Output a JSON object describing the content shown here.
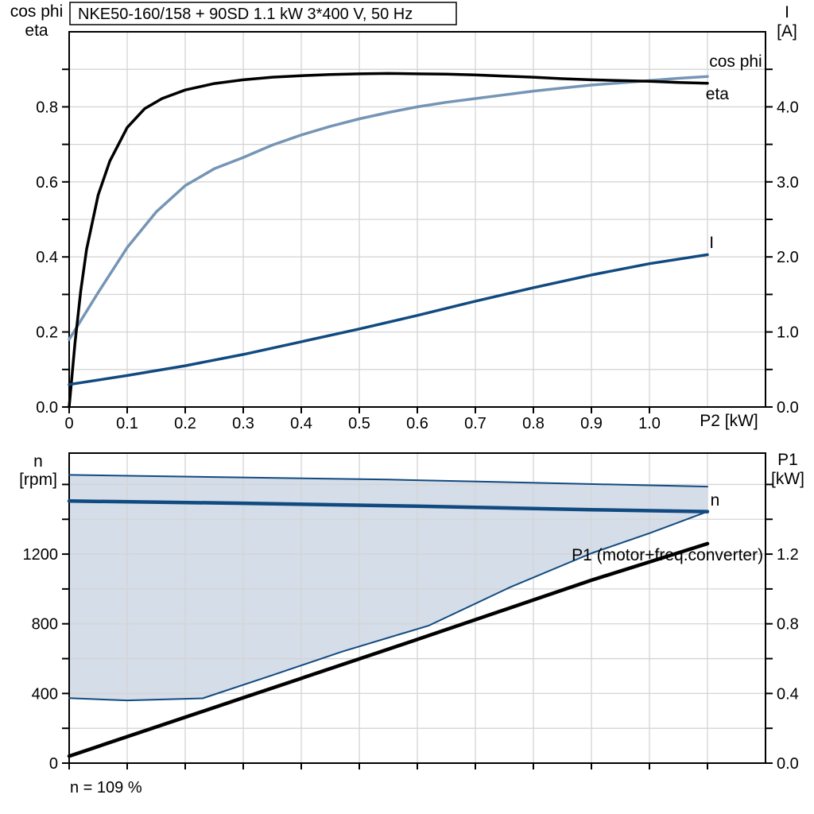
{
  "colors": {
    "black": "#000000",
    "steel_blue": "#7595b5",
    "dark_blue": "#114a80",
    "envelope_fill": "#d4dde8",
    "grid": "#d4d4d4"
  },
  "chart_data": [
    {
      "type": "line",
      "title": "NKE50-160/158 + 90SD   1.1 kW   3*400 V, 50 Hz",
      "left_axis_label": [
        "cos phi",
        "eta"
      ],
      "right_axis_label": [
        "I",
        "[A]"
      ],
      "x_axis_label": "P2 [kW]",
      "x": {
        "min": 0,
        "max": 1.2
      },
      "left": {
        "min": 0,
        "max": 1.0
      },
      "right": {
        "min": 0,
        "max": 5.0
      },
      "grid_on": true,
      "grid_x": [
        0.1,
        0.2,
        0.3,
        0.4,
        0.5,
        0.6,
        0.7,
        0.8,
        0.9,
        1.0,
        1.1
      ],
      "grid_left": [
        0.1,
        0.2,
        0.3,
        0.4,
        0.5,
        0.6,
        0.7,
        0.8,
        0.9
      ],
      "x_ticks": [
        {
          "v": 0,
          "l": "0"
        },
        {
          "v": 0.1,
          "l": "0.1"
        },
        {
          "v": 0.2,
          "l": "0.2"
        },
        {
          "v": 0.3,
          "l": "0.3"
        },
        {
          "v": 0.4,
          "l": "0.4"
        },
        {
          "v": 0.5,
          "l": "0.5"
        },
        {
          "v": 0.6,
          "l": "0.6"
        },
        {
          "v": 0.7,
          "l": "0.7"
        },
        {
          "v": 0.8,
          "l": "0.8"
        },
        {
          "v": 0.9,
          "l": "0.9"
        },
        {
          "v": 1.0,
          "l": "1.0"
        }
      ],
      "left_ticks": [
        {
          "v": 0,
          "l": "0.0"
        },
        {
          "v": 0.1
        },
        {
          "v": 0.2,
          "l": "0.2"
        },
        {
          "v": 0.3
        },
        {
          "v": 0.4,
          "l": "0.4"
        },
        {
          "v": 0.5
        },
        {
          "v": 0.6,
          "l": "0.6"
        },
        {
          "v": 0.7
        },
        {
          "v": 0.8,
          "l": "0.8"
        },
        {
          "v": 0.9
        }
      ],
      "right_ticks": [
        {
          "v": 0,
          "l": "0.0"
        },
        {
          "v": 0.5
        },
        {
          "v": 1.0,
          "l": "1.0"
        },
        {
          "v": 1.5
        },
        {
          "v": 2.0,
          "l": "2.0"
        },
        {
          "v": 2.5
        },
        {
          "v": 3.0,
          "l": "3.0"
        },
        {
          "v": 3.5
        },
        {
          "v": 4.0,
          "l": "4.0"
        },
        {
          "v": 4.5
        }
      ],
      "series": [
        {
          "name": "cos phi",
          "type": "line",
          "axis": "left",
          "color": "#7595b5",
          "width": 3.5,
          "points": [
            [
              0,
              0.18
            ],
            [
              0.02,
              0.23
            ],
            [
              0.05,
              0.305
            ],
            [
              0.1,
              0.425
            ],
            [
              0.15,
              0.52
            ],
            [
              0.2,
              0.59
            ],
            [
              0.25,
              0.635
            ],
            [
              0.3,
              0.665
            ],
            [
              0.35,
              0.698
            ],
            [
              0.4,
              0.725
            ],
            [
              0.45,
              0.748
            ],
            [
              0.5,
              0.768
            ],
            [
              0.55,
              0.785
            ],
            [
              0.6,
              0.8
            ],
            [
              0.65,
              0.812
            ],
            [
              0.7,
              0.822
            ],
            [
              0.75,
              0.832
            ],
            [
              0.8,
              0.842
            ],
            [
              0.85,
              0.85
            ],
            [
              0.9,
              0.858
            ],
            [
              0.95,
              0.864
            ],
            [
              1.0,
              0.87
            ],
            [
              1.05,
              0.876
            ],
            [
              1.1,
              0.881
            ]
          ]
        },
        {
          "name": "eta",
          "type": "line",
          "axis": "left",
          "color": "#000000",
          "width": 3.5,
          "points": [
            [
              0,
              0.0
            ],
            [
              0.01,
              0.17
            ],
            [
              0.02,
              0.31
            ],
            [
              0.03,
              0.42
            ],
            [
              0.05,
              0.565
            ],
            [
              0.07,
              0.655
            ],
            [
              0.1,
              0.745
            ],
            [
              0.13,
              0.795
            ],
            [
              0.16,
              0.822
            ],
            [
              0.2,
              0.845
            ],
            [
              0.25,
              0.862
            ],
            [
              0.3,
              0.872
            ],
            [
              0.35,
              0.879
            ],
            [
              0.4,
              0.883
            ],
            [
              0.45,
              0.886
            ],
            [
              0.5,
              0.888
            ],
            [
              0.55,
              0.889
            ],
            [
              0.6,
              0.888
            ],
            [
              0.65,
              0.887
            ],
            [
              0.7,
              0.885
            ],
            [
              0.75,
              0.882
            ],
            [
              0.8,
              0.879
            ],
            [
              0.85,
              0.875
            ],
            [
              0.9,
              0.872
            ],
            [
              0.95,
              0.87
            ],
            [
              1.0,
              0.868
            ],
            [
              1.05,
              0.865
            ],
            [
              1.1,
              0.863
            ]
          ]
        },
        {
          "name": "I",
          "type": "line",
          "axis": "right",
          "color": "#114a80",
          "width": 3.5,
          "points": [
            [
              0,
              0.3
            ],
            [
              0.1,
              0.42
            ],
            [
              0.2,
              0.55
            ],
            [
              0.3,
              0.7
            ],
            [
              0.4,
              0.87
            ],
            [
              0.5,
              1.04
            ],
            [
              0.6,
              1.22
            ],
            [
              0.7,
              1.41
            ],
            [
              0.8,
              1.59
            ],
            [
              0.9,
              1.76
            ],
            [
              1.0,
              1.91
            ],
            [
              1.1,
              2.03
            ]
          ]
        }
      ],
      "labels": [
        {
          "text": "cos phi",
          "x": 1.103,
          "v": 0.907,
          "axis": "left",
          "color": "#7595b5",
          "anchor": "start"
        },
        {
          "text": "eta",
          "x": 1.097,
          "v": 0.82,
          "axis": "left",
          "color": "#000000",
          "anchor": "start"
        },
        {
          "text": "I",
          "x": 1.103,
          "v": 2.12,
          "axis": "right",
          "color": "#114a80",
          "anchor": "start"
        }
      ]
    },
    {
      "type": "line",
      "footer_note": "n = 109 %",
      "left_axis_label": [
        "n",
        "[rpm]"
      ],
      "right_axis_label": [
        "P1",
        "[kW]"
      ],
      "x_axis_label": "",
      "x": {
        "min": 0,
        "max": 1.2
      },
      "left": {
        "min": 0,
        "max": 1780
      },
      "right": {
        "min": 0,
        "max": 1.78
      },
      "grid_on": true,
      "grid_x": [
        0.1,
        0.2,
        0.3,
        0.4,
        0.5,
        0.6,
        0.7,
        0.8,
        0.9,
        1.0,
        1.1
      ],
      "grid_left": [
        200,
        400,
        600,
        800,
        1000,
        1200,
        1400,
        1600
      ],
      "x_ticks": [
        {
          "v": 0
        },
        {
          "v": 0.1
        },
        {
          "v": 0.2
        },
        {
          "v": 0.3
        },
        {
          "v": 0.4
        },
        {
          "v": 0.5
        },
        {
          "v": 0.6
        },
        {
          "v": 0.7
        },
        {
          "v": 0.8
        },
        {
          "v": 0.9
        },
        {
          "v": 1.0
        },
        {
          "v": 1.1
        }
      ],
      "left_ticks": [
        {
          "v": 0,
          "l": "0"
        },
        {
          "v": 200
        },
        {
          "v": 400,
          "l": "400"
        },
        {
          "v": 600
        },
        {
          "v": 800,
          "l": "800"
        },
        {
          "v": 1000
        },
        {
          "v": 1200,
          "l": "1200"
        },
        {
          "v": 1400
        },
        {
          "v": 1600
        }
      ],
      "right_ticks": [
        {
          "v": 0,
          "l": "0.0"
        },
        {
          "v": 0.2
        },
        {
          "v": 0.4,
          "l": "0.4"
        },
        {
          "v": 0.6
        },
        {
          "v": 0.8,
          "l": "0.8"
        },
        {
          "v": 1.0
        },
        {
          "v": 1.2,
          "l": "1.2"
        },
        {
          "v": 1.4
        },
        {
          "v": 1.6
        }
      ],
      "series": [
        {
          "name": "speed envelope",
          "type": "area",
          "axis": "left",
          "color": "#d4dde8",
          "width": 0,
          "points": [
            [
              0,
              1655
            ],
            [
              0.55,
              1628
            ],
            [
              1.1,
              1588
            ],
            [
              1.1,
              1444
            ],
            [
              1.0,
              1320
            ],
            [
              0.9,
              1205
            ],
            [
              0.76,
              1010
            ],
            [
              0.62,
              790
            ],
            [
              0.47,
              640
            ],
            [
              0.35,
              505
            ],
            [
              0.23,
              372
            ],
            [
              0.1,
              360
            ],
            [
              0,
              373
            ]
          ]
        },
        {
          "name": "envelope max speed",
          "type": "line",
          "axis": "left",
          "color": "#114a80",
          "width": 2,
          "points": [
            [
              0,
              1655
            ],
            [
              0.55,
              1628
            ],
            [
              1.1,
              1588
            ]
          ]
        },
        {
          "name": "envelope min speed",
          "type": "line",
          "axis": "left",
          "color": "#114a80",
          "width": 2,
          "points": [
            [
              0,
              373
            ],
            [
              0.1,
              360
            ],
            [
              0.23,
              372
            ],
            [
              0.35,
              505
            ],
            [
              0.47,
              640
            ],
            [
              0.62,
              790
            ],
            [
              0.76,
              1010
            ],
            [
              0.9,
              1205
            ],
            [
              1.0,
              1320
            ],
            [
              1.1,
              1444
            ]
          ]
        },
        {
          "name": "n",
          "type": "line",
          "axis": "left",
          "color": "#114a80",
          "width": 4.5,
          "points": [
            [
              0,
              1505
            ],
            [
              0.3,
              1492
            ],
            [
              0.6,
              1475
            ],
            [
              0.9,
              1455
            ],
            [
              1.1,
              1444
            ]
          ]
        },
        {
          "name": "P1 (motor+freq.converter)",
          "type": "line",
          "axis": "right",
          "color": "#000000",
          "width": 4.5,
          "points": [
            [
              0,
              0.04
            ],
            [
              0.3,
              0.375
            ],
            [
              0.6,
              0.71
            ],
            [
              0.9,
              1.05
            ],
            [
              1.1,
              1.26
            ]
          ]
        }
      ],
      "labels": [
        {
          "text": "n",
          "x": 1.105,
          "v": 1479,
          "axis": "left",
          "color": "#114a80",
          "anchor": "start"
        },
        {
          "text": "P1 (motor+freq.converter)",
          "x": 1.196,
          "v": 1.164,
          "axis": "right",
          "color": "#000000",
          "anchor": "end"
        }
      ]
    }
  ]
}
